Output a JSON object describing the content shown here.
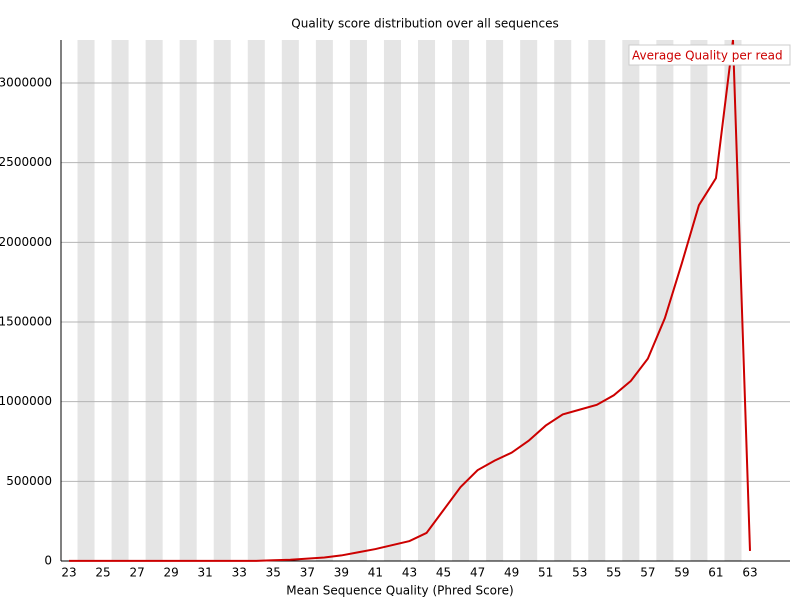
{
  "chart_data": {
    "type": "line",
    "title": "Quality score distribution over all sequences",
    "x_label": "Mean Sequence Quality (Phred Score)",
    "categories": [
      "23",
      null,
      "25",
      null,
      "27",
      null,
      "29",
      null,
      "31",
      null,
      "33",
      null,
      "35",
      null,
      "37",
      null,
      "39",
      null,
      "41",
      null,
      "43",
      null,
      "45",
      null,
      "47",
      null,
      "49",
      null,
      "51",
      null,
      "53",
      null,
      "55",
      null,
      "57",
      null,
      "59",
      null,
      "61",
      null,
      "63"
    ],
    "series": [
      {
        "name": "Average Quality per read",
        "color": "#cc0000",
        "values": [
          1000,
          1000,
          1000,
          1000,
          1000,
          1000,
          1000,
          1000,
          1000,
          1000,
          1000,
          1000,
          5000,
          8000,
          15000,
          22000,
          35000,
          55000,
          75000,
          100000,
          125000,
          176000,
          320000,
          464000,
          570000,
          630000,
          680000,
          755000,
          850000,
          920000,
          950000,
          980000,
          1040000,
          1130000,
          1270000,
          1524000,
          1870000,
          2233000,
          2403000,
          3270000,
          63000
        ]
      }
    ],
    "ylim": [
      0,
      3270000
    ],
    "yticks": [
      0,
      500000,
      1000000,
      1500000,
      2000000,
      2500000,
      3000000
    ],
    "grid": true,
    "legend": "top-right"
  }
}
